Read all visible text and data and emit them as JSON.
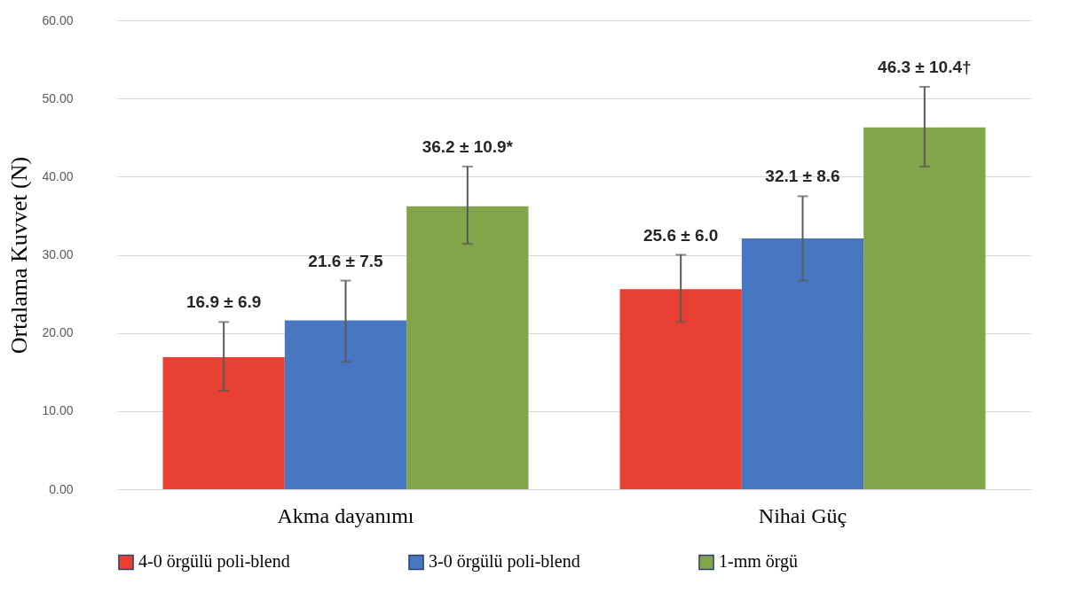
{
  "chart_data": {
    "type": "bar",
    "ylabel": "Ortalama Kuvvet (N)",
    "categories": [
      "Akma dayanımı",
      "Nihai Güç"
    ],
    "series": [
      {
        "name": "4-0 örgülü poli-blend",
        "color": "#e84032",
        "values": [
          16.9,
          25.6
        ],
        "errors": [
          [
            12.6,
            21.4
          ],
          [
            21.4,
            30.0
          ]
        ],
        "value_labels": [
          "16.9 ± 6.9",
          "25.6 ± 6.0"
        ]
      },
      {
        "name": "3-0 örgülü poli-blend",
        "color": "#4677c0",
        "values": [
          21.6,
          32.1
        ],
        "errors": [
          [
            16.3,
            26.7
          ],
          [
            26.7,
            37.5
          ]
        ],
        "value_labels": [
          "21.6 ± 7.5",
          "32.1 ± 8.6"
        ]
      },
      {
        "name": "1-mm örgü",
        "color": "#82a549",
        "values": [
          36.2,
          46.3
        ],
        "errors": [
          [
            31.4,
            41.3
          ],
          [
            41.3,
            51.5
          ]
        ],
        "value_labels": [
          "36.2 ± 10.9*",
          "46.3 ± 10.4†"
        ]
      }
    ],
    "ylim": [
      0,
      60
    ],
    "yticks": [
      {
        "value": 0,
        "label": "0.00"
      },
      {
        "value": 10,
        "label": "10.00"
      },
      {
        "value": 20,
        "label": "20.00"
      },
      {
        "value": 30,
        "label": "30.00"
      },
      {
        "value": 40,
        "label": "40.00"
      },
      {
        "value": 50,
        "label": "50.00"
      },
      {
        "value": 60,
        "label": "60.00"
      }
    ],
    "grid": "y",
    "legend": "bottom"
  }
}
